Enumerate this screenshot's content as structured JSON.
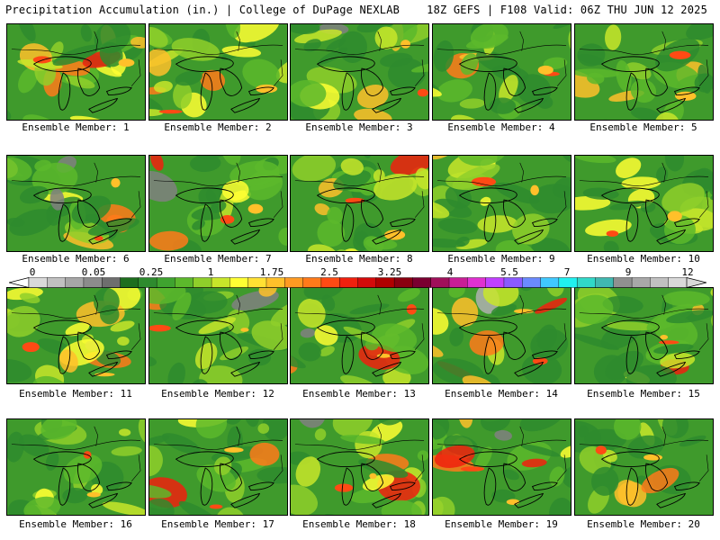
{
  "header": {
    "title_left": "Precipitation Accumulation (in.) | College of DuPage NEXLAB",
    "title_right": "18Z GEFS | F108 Valid: 06Z THU JUN 12 2025"
  },
  "panels": [
    {
      "member": 1,
      "label": "Ensemble Member: 1"
    },
    {
      "member": 2,
      "label": "Ensemble Member: 2"
    },
    {
      "member": 3,
      "label": "Ensemble Member: 3"
    },
    {
      "member": 4,
      "label": "Ensemble Member: 4"
    },
    {
      "member": 5,
      "label": "Ensemble Member: 5"
    },
    {
      "member": 6,
      "label": "Ensemble Member: 6"
    },
    {
      "member": 7,
      "label": "Ensemble Member: 7"
    },
    {
      "member": 8,
      "label": "Ensemble Member: 8"
    },
    {
      "member": 9,
      "label": "Ensemble Member: 9"
    },
    {
      "member": 10,
      "label": "Ensemble Member: 10"
    },
    {
      "member": 11,
      "label": "Ensemble Member: 11"
    },
    {
      "member": 12,
      "label": "Ensemble Member: 12"
    },
    {
      "member": 13,
      "label": "Ensemble Member: 13"
    },
    {
      "member": 14,
      "label": "Ensemble Member: 14"
    },
    {
      "member": 15,
      "label": "Ensemble Member: 15"
    },
    {
      "member": 16,
      "label": "Ensemble Member: 16"
    },
    {
      "member": 17,
      "label": "Ensemble Member: 17"
    },
    {
      "member": 18,
      "label": "Ensemble Member: 18"
    },
    {
      "member": 19,
      "label": "Ensemble Member: 19"
    },
    {
      "member": 20,
      "label": "Ensemble Member: 20"
    }
  ],
  "colorbar": {
    "tick_labels": [
      "0",
      "0.05",
      "0.25",
      "1",
      "1.75",
      "2.5",
      "3.25",
      "4",
      "5.5",
      "7",
      "9",
      "12"
    ],
    "colors": [
      "#d9d9d9",
      "#c0c0c0",
      "#a6a6a6",
      "#8c8c8c",
      "#6e6e6e",
      "#1e6e1e",
      "#2e8b2e",
      "#3fa32f",
      "#5cb82c",
      "#8fcf2a",
      "#c8e62a",
      "#ffff33",
      "#ffe033",
      "#ffc02a",
      "#ff9a22",
      "#ff7a1a",
      "#ff4a14",
      "#f0200e",
      "#d40a0a",
      "#b00000",
      "#8a0010",
      "#7a0030",
      "#a0105a",
      "#c81e96",
      "#e030d0",
      "#c040ff",
      "#8a5aff",
      "#6a8aff",
      "#40c8ff",
      "#20f0f0",
      "#30d8c8",
      "#40b8b0",
      "#909090",
      "#a8a8a8",
      "#c0c0c0",
      "#d8d8d8"
    ]
  }
}
